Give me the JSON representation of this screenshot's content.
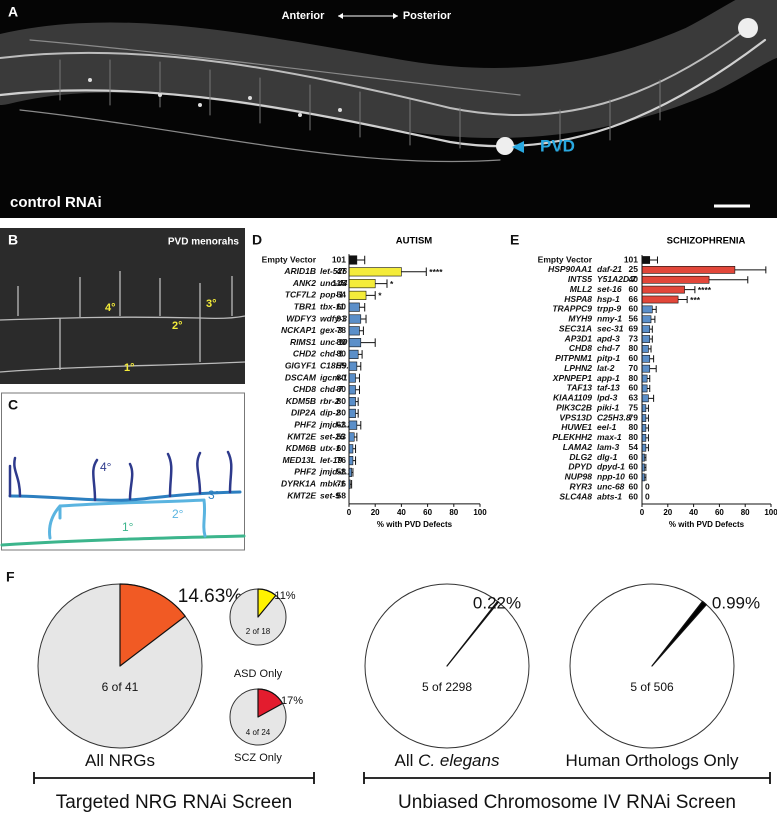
{
  "panels": {
    "A": {
      "label": "A",
      "anterior": "Anterior",
      "posterior": "Posterior",
      "pvd": "PVD",
      "condition": "control RNAi"
    },
    "B": {
      "label": "B",
      "title": "PVD menorahs",
      "quaternary": "4°",
      "tertiary": "3°",
      "secondary": "2°",
      "primary": "1°"
    },
    "C": {
      "label": "C",
      "quaternary": "4°",
      "tertiary": "3°",
      "secondary": "2°",
      "primary": "1°"
    },
    "D": {
      "label": "D"
    },
    "E": {
      "label": "E"
    },
    "F": {
      "label": "F",
      "left_group": "Targeted NRG RNAi Screen",
      "right_group": "Unbiased Chromosome IV RNAi Screen"
    }
  },
  "chart_data": [
    {
      "type": "hbar",
      "title": "AUTISM",
      "x_label": "% with PVD Defects",
      "categories": [
        "Empty Vector",
        "ARID1B",
        "ANK2",
        "TCF7L2",
        "TBR1",
        "WDFY3",
        "NCKAP1",
        "RIMS1",
        "CHD2",
        "GIGYF1",
        "DSCAM",
        "CHD8",
        "KDM5B",
        "DIP2A",
        "PHF2",
        "KMT2E",
        "KDM6B",
        "MED13L",
        "PHF2",
        "DYRK1A",
        "KMT2E"
      ],
      "worm_genes": [
        null,
        "let-526",
        "unc-44",
        "pop-1",
        "tbx-11",
        "wdfy-3",
        "gex-3",
        "unc-10",
        "chd-1",
        "C18H9.3",
        "igcm-1",
        "chd-7",
        "rbr-2",
        "dip-2",
        "jmjd-1.2",
        "set-26",
        "utx-1",
        "let-19",
        "jmjd-1.1",
        "mbk-1",
        "set-9"
      ],
      "n": [
        101,
        47,
        115,
        54,
        60,
        91,
        78,
        80,
        80,
        55,
        80,
        80,
        80,
        80,
        63,
        53,
        60,
        76,
        58,
        76,
        58
      ],
      "values": [
        6,
        40,
        20,
        13,
        8,
        9,
        8,
        9,
        7,
        6,
        5,
        5,
        5,
        5,
        6,
        4,
        3,
        3,
        2,
        1,
        0
      ],
      "errors": [
        6,
        19,
        9,
        7,
        4,
        4,
        3,
        11,
        3,
        3,
        3,
        3,
        2,
        2,
        3,
        2,
        2,
        2,
        1,
        1,
        0
      ],
      "significance": [
        null,
        "****",
        "*",
        "*",
        null,
        null,
        null,
        null,
        null,
        null,
        null,
        null,
        null,
        null,
        null,
        null,
        null,
        null,
        null,
        null,
        null
      ],
      "colors": [
        "#111111",
        "#f4ec3a",
        "#f4ec3a",
        "#f4ec3a",
        "#5b8fc9",
        "#5b8fc9",
        "#5b8fc9",
        "#5b8fc9",
        "#5b8fc9",
        "#5b8fc9",
        "#5b8fc9",
        "#5b8fc9",
        "#5b8fc9",
        "#5b8fc9",
        "#5b8fc9",
        "#5b8fc9",
        "#5b8fc9",
        "#5b8fc9",
        "#5b8fc9",
        "#5b8fc9",
        "#5b8fc9"
      ],
      "xlim": [
        0,
        100
      ],
      "xticks": [
        0,
        20,
        40,
        60,
        80,
        100
      ]
    },
    {
      "type": "hbar",
      "title": "SCHIZOPHRENIA",
      "x_label": "% with PVD Defects",
      "categories": [
        "Empty Vector",
        "HSP90AA1",
        "INTS5",
        "MLL2",
        "HSPA8",
        "TRAPPC9",
        "MYH9",
        "SEC31A",
        "AP3D1",
        "CHD8",
        "PITPNM1",
        "LPHN2",
        "XPNPEP1",
        "TAF13",
        "KIAA1109",
        "PIK3C2B",
        "VPS13D",
        "HUWE1",
        "PLEKHH2",
        "LAMA2",
        "DLG2",
        "DPYD",
        "NUP98",
        "RYR3",
        "SLC4A8"
      ],
      "worm_genes": [
        null,
        "daf-21",
        "Y51A2D.7",
        "set-16",
        "hsp-1",
        "trpp-9",
        "nmy-1",
        "sec-31",
        "apd-3",
        "chd-7",
        "pitp-1",
        "lat-2",
        "app-1",
        "taf-13",
        "lpd-3",
        "piki-1",
        "C25H3.8",
        "eel-1",
        "max-1",
        "lam-3",
        "dlg-1",
        "dpyd-1",
        "npp-10",
        "unc-68",
        "abts-1"
      ],
      "n": [
        101,
        25,
        40,
        60,
        66,
        60,
        56,
        69,
        73,
        80,
        60,
        70,
        80,
        60,
        63,
        75,
        79,
        80,
        80,
        54,
        60,
        60,
        60,
        60,
        60
      ],
      "values": [
        6,
        72,
        52,
        33,
        28,
        8,
        7,
        6,
        6,
        5,
        6,
        6,
        4,
        4,
        5,
        3,
        3,
        3,
        3,
        3,
        2,
        2,
        2,
        0,
        0
      ],
      "errors": [
        6,
        24,
        30,
        8,
        7,
        3,
        3,
        2,
        2,
        2,
        3,
        5,
        2,
        2,
        4,
        2,
        2,
        2,
        2,
        2,
        1,
        1,
        1,
        0,
        0
      ],
      "value_labels": [
        null,
        null,
        null,
        null,
        null,
        null,
        null,
        null,
        null,
        null,
        null,
        null,
        null,
        null,
        null,
        null,
        null,
        null,
        null,
        null,
        null,
        null,
        null,
        "0",
        "0"
      ],
      "significance": [
        null,
        null,
        null,
        "****",
        "***",
        null,
        null,
        null,
        null,
        null,
        null,
        null,
        null,
        null,
        null,
        null,
        null,
        null,
        null,
        null,
        null,
        null,
        null,
        null,
        null
      ],
      "colors": [
        "#111111",
        "#e2473a",
        "#e2473a",
        "#e2473a",
        "#e2473a",
        "#5b8fc9",
        "#5b8fc9",
        "#5b8fc9",
        "#5b8fc9",
        "#5b8fc9",
        "#5b8fc9",
        "#5b8fc9",
        "#5b8fc9",
        "#5b8fc9",
        "#5b8fc9",
        "#5b8fc9",
        "#5b8fc9",
        "#5b8fc9",
        "#5b8fc9",
        "#5b8fc9",
        "#5b8fc9",
        "#5b8fc9",
        "#5b8fc9",
        "#5b8fc9",
        "#5b8fc9"
      ],
      "xlim": [
        0,
        100
      ],
      "xticks": [
        0,
        20,
        40,
        60,
        80,
        100
      ]
    },
    {
      "type": "pie",
      "title": "All NRGs",
      "values": [
        14.63
      ],
      "value_labels": [
        "14.63%"
      ],
      "annotation": "6 of 41",
      "color": "#f15a24",
      "background_color": "#e6e6e6",
      "start_angle": 0
    },
    {
      "type": "pie",
      "title": "ASD Only",
      "values": [
        11
      ],
      "value_labels": [
        "11%"
      ],
      "annotation": "2 of 18",
      "color": "#fff200",
      "background_color": "#e6e6e6",
      "start_angle": 0
    },
    {
      "type": "pie",
      "title": "SCZ Only",
      "values": [
        17
      ],
      "value_labels": [
        "17%"
      ],
      "annotation": "4 of 24",
      "color": "#e31c2e",
      "background_color": "#e6e6e6",
      "start_angle": 0
    },
    {
      "type": "pie",
      "title": "All",
      "title_italic": "C. elegans",
      "values": [
        0.22
      ],
      "value_labels": [
        "0.22%"
      ],
      "annotation": "5 of 2298",
      "color": "#000000",
      "background_color": "#ffffff",
      "start_angle": 38
    },
    {
      "type": "pie",
      "title": "Human Orthologs Only",
      "values": [
        0.99
      ],
      "value_labels": [
        "0.99%"
      ],
      "annotation": "5 of 506",
      "color": "#000000",
      "background_color": "#ffffff",
      "start_angle": 38
    }
  ]
}
